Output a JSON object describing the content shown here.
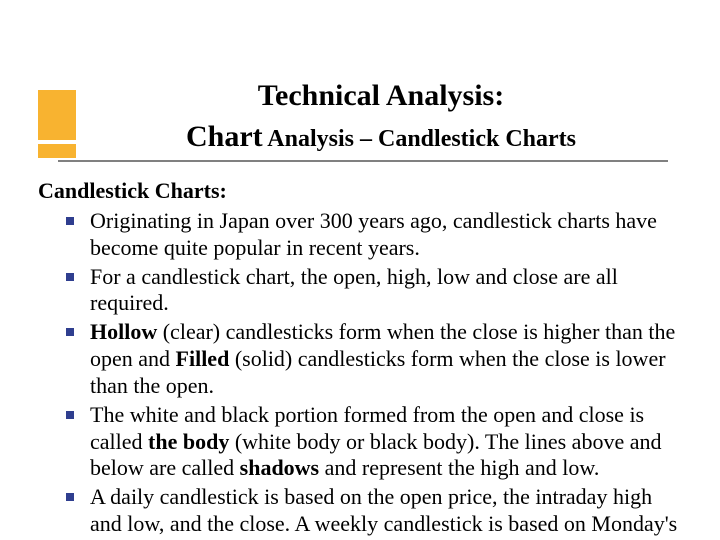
{
  "colors": {
    "accent": "#f8b330",
    "underline": "#808080",
    "bullet": "#2f3e8f",
    "text": "#000000",
    "background": "#ffffff"
  },
  "typography": {
    "font_family": "Times New Roman",
    "title_main_fontsize": 30,
    "title_sub_fontsize": 24,
    "body_fontsize": 22,
    "line_height": 1.22
  },
  "layout": {
    "slide_width": 720,
    "slide_height": 540,
    "bullet_marker": "square"
  },
  "title": {
    "line1": "Technical Analysis:",
    "line2_big": "Chart",
    "line2_rest": " Analysis – Candlestick Charts"
  },
  "content": {
    "heading": "Candlestick Charts:",
    "bullets": [
      {
        "runs": [
          {
            "t": "Originating in Japan over 300 years ago, candlestick charts have become quite popular in recent years.",
            "b": false
          }
        ]
      },
      {
        "runs": [
          {
            "t": "For a candlestick chart, the open, high, low and close are all required.",
            "b": false
          }
        ]
      },
      {
        "runs": [
          {
            "t": "Hollow",
            "b": true
          },
          {
            "t": " (clear) candlesticks form when the close is higher than the open and ",
            "b": false
          },
          {
            "t": "Filled",
            "b": true
          },
          {
            "t": " (solid) candlesticks form when the close is lower than the open.",
            "b": false
          }
        ]
      },
      {
        "runs": [
          {
            "t": "The white and black portion formed from the open and close is called ",
            "b": false
          },
          {
            "t": "the body",
            "b": true
          },
          {
            "t": " (white body or black body). The lines above and below are called ",
            "b": false
          },
          {
            "t": "shadows",
            "b": true
          },
          {
            "t": " and represent the high and low.",
            "b": false
          }
        ]
      },
      {
        "runs": [
          {
            "t": "A daily candlestick is based on the open price, the intraday high and low, and the close. A weekly candlestick is based on Monday's open, the weekly high-low range and Friday's close.",
            "b": false
          }
        ]
      }
    ]
  }
}
